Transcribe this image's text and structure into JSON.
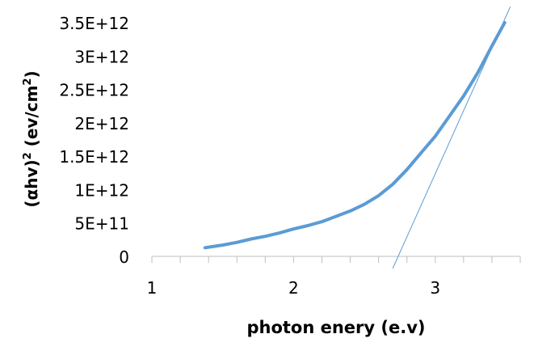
{
  "chart_data": {
    "type": "line",
    "title": "",
    "xlabel": "photon enery (e.v)",
    "ylabel_parts": [
      "(αhv)",
      "2",
      " (ev/cm",
      "2",
      ")"
    ],
    "xlim": [
      1,
      3.6
    ],
    "ylim": [
      0,
      3500000000000.0
    ],
    "x_ticks": [
      1,
      2,
      3
    ],
    "x_minor_step": 0.2,
    "y_ticks": [
      0,
      500000000000.0,
      1000000000000.0,
      1500000000000.0,
      2000000000000.0,
      2500000000000.0,
      3000000000000.0,
      3500000000000.0
    ],
    "y_tick_labels": [
      "0",
      "5E+11",
      "1E+12",
      "1.5E+12",
      "2E+12",
      "2.5E+12",
      "3E+12",
      "3.5E+12"
    ],
    "x_tick_labels": [
      "1",
      "2",
      "3"
    ],
    "grid": false,
    "series": [
      {
        "color": "#5b9bd5",
        "x": [
          1.375,
          1.5,
          1.6,
          1.7,
          1.8,
          1.9,
          2.0,
          2.1,
          2.2,
          2.3,
          2.4,
          2.5,
          2.6,
          2.7,
          2.8,
          2.9,
          3.0,
          3.1,
          3.2,
          3.3,
          3.4,
          3.49
        ],
        "y": [
          130000000000.0,
          170000000000.0,
          210000000000.0,
          260000000000.0,
          300000000000.0,
          350000000000.0,
          410000000000.0,
          460000000000.0,
          520000000000.0,
          600000000000.0,
          680000000000.0,
          780000000000.0,
          910000000000.0,
          1080000000000.0,
          1300000000000.0,
          1550000000000.0,
          1800000000000.0,
          2100000000000.0,
          2400000000000.0,
          2750000000000.0,
          3150000000000.0,
          3500000000000.0
        ]
      }
    ],
    "tangent_line": {
      "color": "#5b9bd5",
      "x": [
        2.7,
        3.53
      ],
      "y": [
        -180000000000.0,
        3740000000000.0
      ],
      "x_intercept": 2.72
    }
  }
}
